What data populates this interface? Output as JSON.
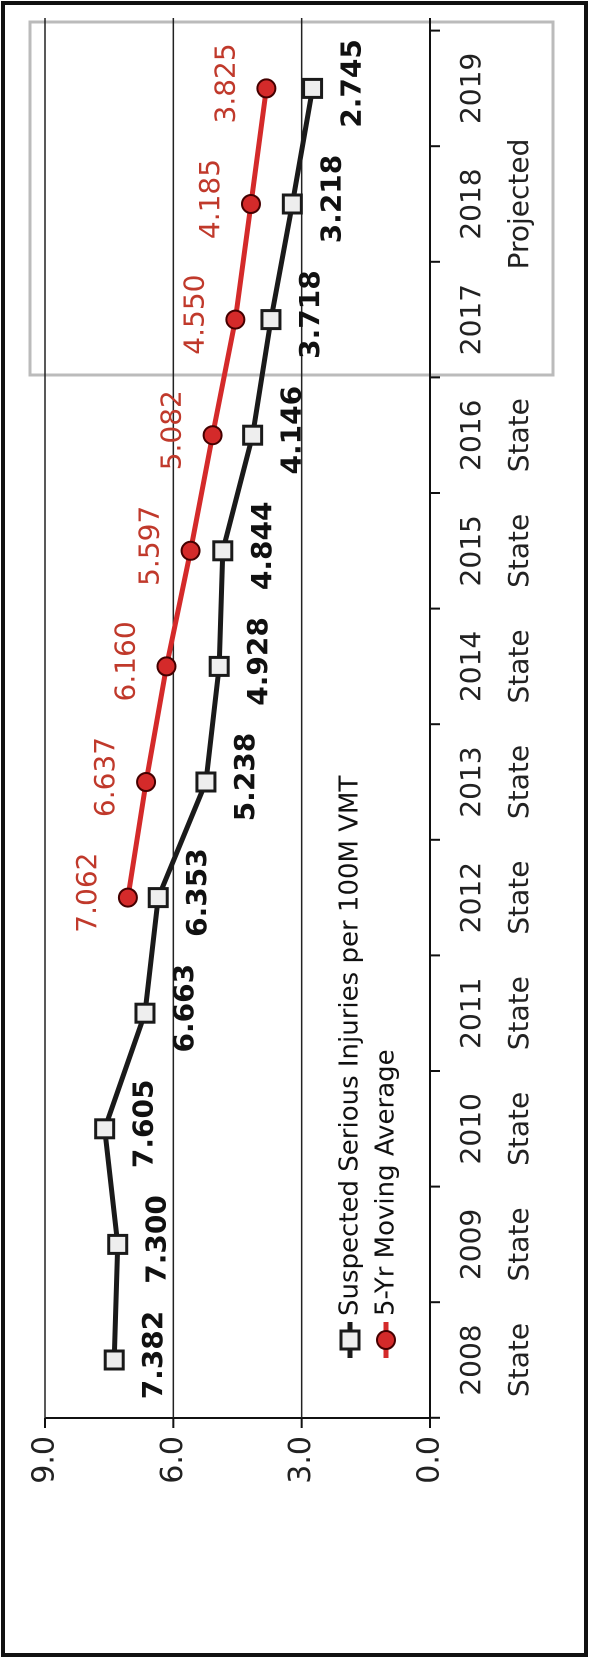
{
  "chart_data": {
    "type": "line",
    "categories": [
      "2008",
      "2009",
      "2010",
      "2011",
      "2012",
      "2013",
      "2014",
      "2015",
      "2016",
      "2017",
      "2018",
      "2019"
    ],
    "category_notes": [
      "State",
      "State",
      "State",
      "State",
      "State",
      "State",
      "State",
      "State",
      "State",
      null,
      "Projected",
      null
    ],
    "series": [
      {
        "name": "Suspected Serious Injuries per 100M VMT",
        "color": "#1a1a1a",
        "marker": "square",
        "values": [
          7.382,
          7.3,
          7.605,
          6.663,
          6.353,
          5.238,
          4.928,
          4.844,
          4.146,
          3.718,
          3.218,
          2.745
        ],
        "value_labels": [
          "7.382",
          "7.300",
          "7.605",
          "6.663",
          "6.353",
          "5.238",
          "4.928",
          "4.844",
          "4.146",
          "3.718",
          "3.218",
          "2.745"
        ]
      },
      {
        "name": "5-Yr Moving Average",
        "color": "#d42a2a",
        "marker": "circle",
        "values": [
          null,
          null,
          null,
          null,
          7.062,
          6.637,
          6.16,
          5.597,
          5.082,
          4.55,
          4.185,
          3.825
        ],
        "value_labels": [
          null,
          null,
          null,
          null,
          "7.062",
          "6.637",
          "6.160",
          "5.597",
          "5.082",
          "4.550",
          "4.185",
          "3.825"
        ]
      }
    ],
    "ylim": [
      0,
      9
    ],
    "yticks": [
      {
        "value": 0,
        "label": "0.0"
      },
      {
        "value": 3,
        "label": "3.0"
      },
      {
        "value": 6,
        "label": "6.0"
      },
      {
        "value": 9,
        "label": "9.0"
      }
    ],
    "grid": true
  }
}
